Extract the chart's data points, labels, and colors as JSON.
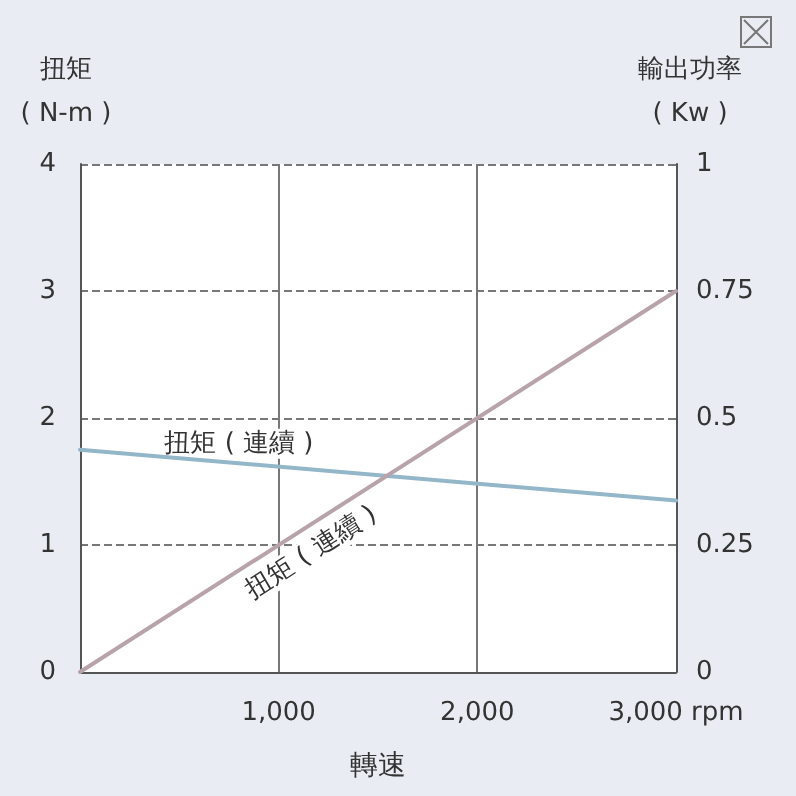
{
  "chart_data": {
    "type": "line",
    "xlabel": "轉速",
    "ylabel": "扭矩\n( N-m )",
    "y2label": "輸出功率\n( Kw )",
    "xlim": [
      0,
      3000
    ],
    "x": [
      0,
      3000
    ],
    "xticks": [
      {
        "value": 1000,
        "label": "1,000"
      },
      {
        "value": 2000,
        "label": "2,000"
      },
      {
        "value": 3000,
        "label": "3,000 rpm"
      }
    ],
    "ylim": [
      0,
      4
    ],
    "yticks": [
      0,
      1,
      2,
      3,
      4
    ],
    "y2lim": [
      0,
      1
    ],
    "y2ticks": [
      0,
      0.25,
      0.5,
      0.75,
      1
    ],
    "series": [
      {
        "values": [
          1.75,
          1.35
        ],
        "color": "#93b6c8"
      },
      {
        "values": [
          0,
          0.75
        ],
        "color": "#b9a3ab",
        "axis": "y2"
      }
    ],
    "annotations": [
      {
        "text": "扭矩 ( 連續 )",
        "x": 800,
        "y": 1.64
      },
      {
        "text": "扭矩 ( 連續 )",
        "x": 1100,
        "y": 1.1
      }
    ],
    "grid": true,
    "marker": "none",
    "line_style": "solid"
  }
}
